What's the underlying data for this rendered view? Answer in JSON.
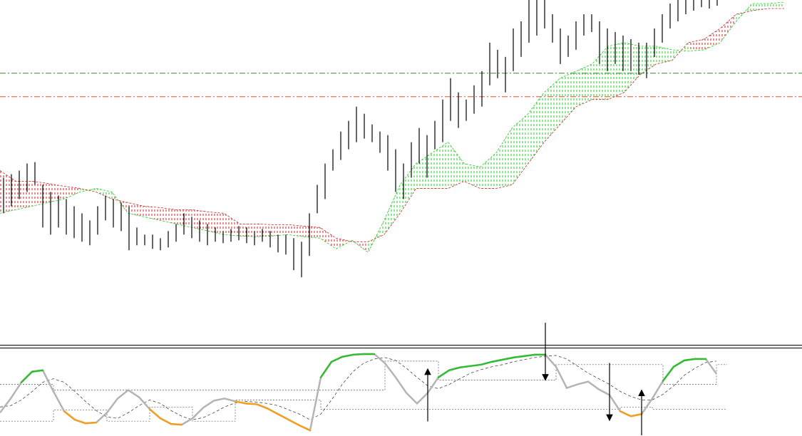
{
  "chart_data": [
    {
      "type": "ohlc",
      "ylim": [
        0,
        485
      ],
      "color": "#000000",
      "high": [
        235,
        240,
        245,
        255,
        257,
        225,
        215,
        210,
        205,
        195,
        185,
        175,
        195,
        210,
        205,
        200,
        195,
        165,
        155,
        155,
        150,
        160,
        170,
        185,
        180,
        175,
        170,
        165,
        160,
        163,
        167,
        165,
        160,
        163,
        160,
        155,
        155,
        150,
        145,
        185,
        225,
        255,
        275,
        300,
        315,
        335,
        325,
        310,
        300,
        295,
        275,
        255,
        285,
        305,
        295,
        315,
        345,
        375,
        355,
        345,
        365,
        385,
        425,
        415,
        405,
        445,
        455,
        485,
        485,
        485,
        465,
        445,
        435,
        455,
        465,
        465,
        455,
        445,
        440,
        435,
        430,
        425,
        425,
        445,
        465,
        480,
        485,
        485,
        485,
        485,
        485,
        485
      ],
      "low": [
        185,
        195,
        205,
        215,
        225,
        165,
        155,
        165,
        155,
        150,
        145,
        140,
        155,
        175,
        165,
        160,
        133,
        140,
        140,
        135,
        133,
        137,
        145,
        155,
        150,
        145,
        140,
        145,
        143,
        145,
        147,
        143,
        140,
        145,
        137,
        130,
        127,
        105,
        95,
        125,
        185,
        205,
        245,
        260,
        275,
        285,
        290,
        285,
        270,
        245,
        215,
        205,
        235,
        255,
        235,
        275,
        285,
        315,
        305,
        315,
        325,
        335,
        365,
        375,
        355,
        385,
        405,
        425,
        435,
        445,
        425,
        395,
        405,
        415,
        435,
        440,
        395,
        385,
        395,
        385,
        385,
        380,
        375,
        405,
        425,
        445,
        455,
        465,
        470,
        475,
        473,
        477
      ],
      "cloud": {
        "bull_color": "#22cc22",
        "bear_color": "#cc2222",
        "span_a": [
          185,
          190,
          195,
          200,
          205,
          215,
          220,
          215,
          185,
          180,
          175,
          170,
          165,
          160,
          155,
          153,
          152,
          153,
          155,
          152,
          150,
          135,
          147,
          130,
          175,
          225,
          255,
          270,
          285,
          255,
          250,
          270,
          305,
          325,
          355,
          375,
          385,
          395,
          420,
          425,
          420,
          420,
          415,
          413,
          415,
          425,
          455,
          480,
          480,
          482
        ],
        "span_b": [
          245,
          230,
          230,
          227,
          223,
          220,
          215,
          205,
          200,
          195,
          193,
          190,
          190,
          187,
          185,
          170,
          170,
          169,
          169,
          167,
          165,
          150,
          145,
          145,
          155,
          185,
          220,
          220,
          220,
          230,
          220,
          220,
          225,
          255,
          285,
          310,
          335,
          345,
          345,
          355,
          380,
          395,
          400,
          425,
          430,
          445,
          465,
          470,
          473,
          473
        ]
      },
      "levels": [
        {
          "value": 382,
          "color": "#2e8b2e"
        },
        {
          "value": 349,
          "color": "#e05030"
        }
      ]
    },
    {
      "type": "oscillator",
      "ylim": [
        0,
        122
      ],
      "color": "#b4b4b4",
      "upper_color": "#33bb33",
      "lower_color": "#f0a020",
      "arrow_color": "#000000",
      "values": [
        32,
        52,
        75,
        90,
        92,
        62,
        34,
        22,
        17,
        18,
        32,
        52,
        64,
        54,
        37,
        24,
        16,
        15,
        24,
        39,
        49,
        52,
        48,
        45,
        44,
        38,
        30,
        22,
        14,
        7,
        82,
        104,
        111,
        114,
        115,
        115,
        102,
        82,
        60,
        45,
        60,
        82,
        92,
        96,
        98,
        100,
        104,
        107,
        110,
        112,
        114,
        114,
        97,
        67,
        72,
        76,
        65,
        57,
        34,
        27,
        30,
        52,
        77,
        97,
        106,
        108,
        108,
        87
      ],
      "signal": {
        "color": "#444444",
        "values": [
          40,
          42,
          50,
          62,
          75,
          80,
          75,
          62,
          48,
          35,
          26,
          24,
          32,
          42,
          50,
          45,
          35,
          27,
          22,
          25,
          32,
          40,
          46,
          48,
          47,
          45,
          42,
          36,
          30,
          22,
          30,
          50,
          72,
          90,
          102,
          108,
          110,
          106,
          95,
          82,
          70,
          66,
          72,
          80,
          88,
          93,
          97,
          100,
          104,
          107,
          110,
          112,
          113,
          108,
          98,
          88,
          80,
          72,
          62,
          55,
          50,
          50,
          58,
          70,
          85,
          95,
          103,
          105
        ]
      },
      "upper": [
        72,
        72,
        72,
        72,
        72,
        64,
        64,
        64,
        64,
        64,
        64,
        64,
        64,
        64,
        64,
        64,
        64,
        64,
        64,
        64,
        64,
        64,
        64,
        64,
        64,
        64,
        64,
        64,
        64,
        64,
        64,
        64,
        64,
        64,
        64,
        64,
        105,
        105,
        105,
        105,
        105,
        78,
        78,
        78,
        78,
        78,
        78,
        78,
        78,
        78,
        78,
        78,
        100,
        100,
        100,
        100,
        100,
        100,
        100,
        100,
        100,
        100,
        72,
        72,
        72,
        72,
        72,
        100
      ],
      "lower": [
        20,
        20,
        20,
        20,
        20,
        36,
        36,
        36,
        36,
        36,
        20,
        20,
        20,
        20,
        40,
        40,
        40,
        40,
        20,
        20,
        20,
        20,
        50,
        50,
        50,
        50,
        50,
        50,
        50,
        50,
        37,
        37,
        37,
        37,
        37,
        37,
        37,
        37,
        37,
        37,
        37,
        37,
        37,
        37,
        37,
        37,
        37,
        37,
        37,
        37,
        37,
        37,
        37,
        37,
        37,
        37,
        37,
        37,
        40,
        40,
        40,
        37,
        37,
        37,
        37,
        37,
        37,
        37
      ],
      "signals": [
        {
          "index": 40,
          "direction": "up"
        },
        {
          "index": 51,
          "direction": "down"
        },
        {
          "index": 57,
          "direction": "down"
        },
        {
          "index": 60,
          "direction": "up"
        }
      ]
    }
  ]
}
